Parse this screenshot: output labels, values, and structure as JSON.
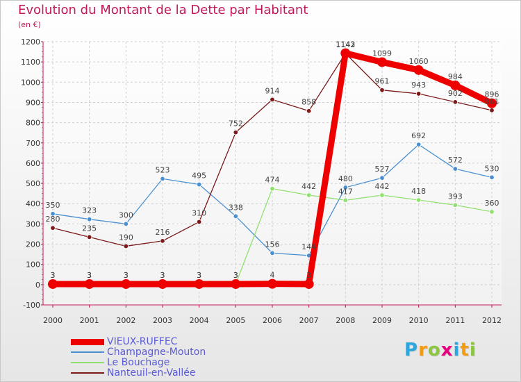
{
  "title": "Evolution du Montant de la Dette par Habitant",
  "subtitle": "(en €)",
  "logo": {
    "letters": [
      "P",
      "r",
      "o",
      "x",
      "i",
      "t",
      "i"
    ],
    "colors": [
      "#2aa7df",
      "#f39c12",
      "#8cc63f",
      "#e6007e",
      "#2aa7df",
      "#f39c12",
      "#8cc63f"
    ]
  },
  "chart_data": {
    "type": "line",
    "title": "Evolution du Montant de la Dette par Habitant",
    "subtitle": "(en €)",
    "xlabel": "",
    "ylabel": "",
    "x": [
      "2000",
      "2001",
      "2002",
      "2003",
      "2004",
      "2005",
      "2006",
      "2007",
      "2008",
      "2009",
      "2010",
      "2011",
      "2012"
    ],
    "ylim": [
      -100,
      1200
    ],
    "yticks": [
      "-100",
      "0",
      "100",
      "200",
      "300",
      "400",
      "500",
      "600",
      "700",
      "800",
      "900",
      "1000",
      "1100",
      "1200"
    ],
    "grid": true,
    "legend_position": "bottom-left",
    "series": [
      {
        "name": "VIEUX-RUFFEC",
        "color": "#ee0000",
        "values": [
          3,
          3,
          3,
          3,
          3,
          3,
          4,
          3,
          1143,
          1099,
          1060,
          984,
          896
        ],
        "labels": [
          "3",
          "3",
          "3",
          "3",
          "3",
          "3",
          "4",
          "3",
          "1143",
          "1099",
          "1060",
          "984",
          "896"
        ]
      },
      {
        "name": "Champagne-Mouton",
        "color": "#4a90d0",
        "values": [
          350,
          323,
          300,
          523,
          495,
          338,
          156,
          144,
          480,
          527,
          692,
          572,
          530
        ],
        "labels": [
          "350",
          "323",
          "300",
          "523",
          "495",
          "338",
          "156",
          "144",
          "480",
          "527",
          "692",
          "572",
          "530"
        ]
      },
      {
        "name": "Le Bouchage",
        "color": "#90e070",
        "values": [
          3,
          3,
          3,
          3,
          3,
          3,
          474,
          442,
          417,
          442,
          418,
          393,
          360
        ],
        "labels": [
          "3",
          "3",
          "3",
          "3",
          "3",
          "3",
          "474",
          "442",
          "417",
          "442",
          "418",
          "393",
          "360"
        ]
      },
      {
        "name": "Nanteuil-en-Vallée",
        "color": "#7b1a1a",
        "values": [
          280,
          235,
          190,
          216,
          310,
          752,
          914,
          858,
          1142,
          961,
          943,
          902,
          861
        ],
        "labels": [
          "280",
          "235",
          "190",
          "216",
          "310",
          "752",
          "914",
          "858",
          "1142",
          "961",
          "943",
          "902",
          "861"
        ]
      }
    ]
  }
}
